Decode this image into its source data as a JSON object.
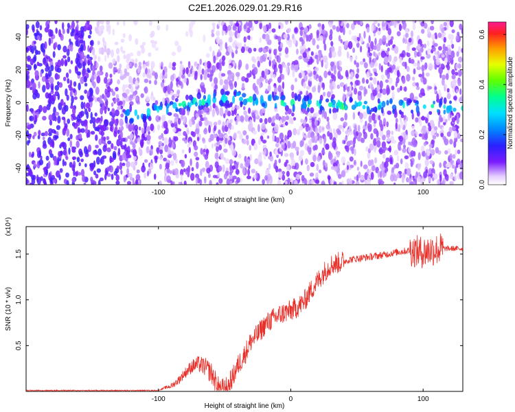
{
  "title": "C2E1.2026.029.01.29.R16",
  "chart_data": [
    {
      "type": "heatmap",
      "xlabel": "Height of straight line (km)",
      "ylabel": "Frequency (Hz)",
      "xlim": [
        -200,
        130
      ],
      "ylim": [
        -50,
        50
      ],
      "xticks": [
        -100,
        0,
        100
      ],
      "yticks": [
        -40,
        -20,
        0,
        20,
        40
      ],
      "colorbar": {
        "label": "Normalized spectral amplitude",
        "range": [
          0.0,
          0.65
        ],
        "ticks": [
          0.0,
          0.2,
          0.4,
          0.6
        ],
        "tick_labels": [
          "0.0",
          "0.2",
          "0.4",
          "0.6"
        ]
      },
      "ridge": {
        "description_points_x": [
          -120,
          -100,
          -80,
          -60,
          -40,
          -20,
          0,
          20,
          40,
          60,
          80,
          100,
          130
        ],
        "frequency_y": [
          -8,
          -5,
          -1,
          2,
          3,
          1,
          0,
          -1,
          -2,
          -2,
          -2,
          -3,
          -3
        ]
      }
    },
    {
      "type": "line",
      "xlabel": "Height of straight line (km)",
      "ylabel": "SNR (10 * v/v)",
      "y_multiplier": "(x10⁴)",
      "xlim": [
        -200,
        130
      ],
      "ylim": [
        0,
        1.8
      ],
      "xticks": [
        -100,
        0,
        100
      ],
      "yticks": [
        0.5,
        1.0,
        1.5
      ],
      "ytick_labels": [
        "0.5",
        "1.0",
        "1.5"
      ],
      "color": "#e8302a",
      "series": [
        {
          "name": "SNR",
          "x": [
            -200,
            -100,
            -95,
            -90,
            -85,
            -80,
            -75,
            -70,
            -65,
            -60,
            -55,
            -50,
            -45,
            -40,
            -35,
            -30,
            -25,
            -20,
            -15,
            -10,
            -5,
            0,
            5,
            10,
            15,
            20,
            25,
            30,
            35,
            40,
            45,
            50,
            60,
            70,
            80,
            90,
            100,
            105,
            110,
            115,
            120,
            130
          ],
          "values": [
            0.01,
            0.01,
            0.04,
            0.06,
            0.12,
            0.2,
            0.27,
            0.3,
            0.27,
            0.2,
            0.05,
            0.02,
            0.12,
            0.28,
            0.4,
            0.55,
            0.62,
            0.72,
            0.78,
            0.82,
            0.86,
            0.88,
            0.92,
            0.98,
            1.1,
            1.2,
            1.3,
            1.38,
            1.4,
            1.42,
            1.44,
            1.45,
            1.47,
            1.49,
            1.52,
            1.54,
            1.52,
            1.54,
            1.55,
            1.56,
            1.56,
            1.56
          ]
        }
      ]
    }
  ]
}
